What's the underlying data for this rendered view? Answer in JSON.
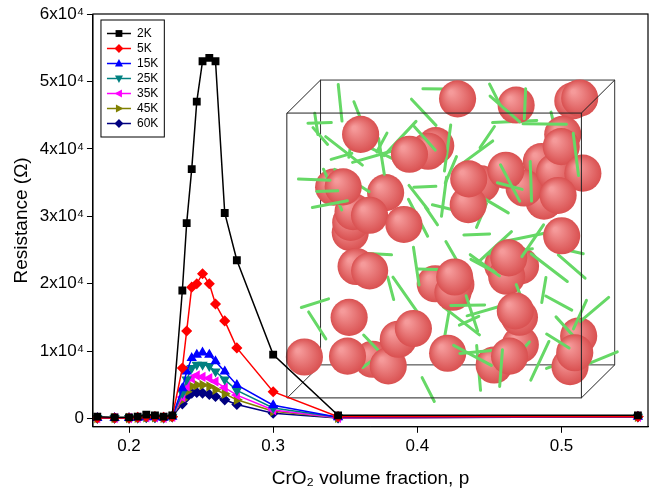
{
  "chart_data": {
    "type": "line",
    "x_label": "CrO₂ volume fraction, p",
    "y_label": "Resistance (Ω)",
    "x": [
      0.178,
      0.19,
      0.2,
      0.206,
      0.212,
      0.218,
      0.224,
      0.23,
      0.237,
      0.24,
      0.2435,
      0.247,
      0.251,
      0.2557,
      0.26,
      0.2664,
      0.2748,
      0.3,
      0.345,
      0.553
    ],
    "xlim": [
      0.175,
      0.56
    ],
    "xticks": [
      0.2,
      0.3,
      0.4,
      0.5
    ],
    "ylim": [
      -1200,
      60000
    ],
    "yticks": [
      {
        "value": 0,
        "label": "0"
      },
      {
        "value": 10000,
        "label": "1x10⁴"
      },
      {
        "value": 20000,
        "label": "2x10⁴"
      },
      {
        "value": 30000,
        "label": "3x10⁴"
      },
      {
        "value": 40000,
        "label": "4x10⁴"
      },
      {
        "value": 50000,
        "label": "5x10⁴"
      },
      {
        "value": 60000,
        "label": "6x10⁴"
      }
    ],
    "grid": false,
    "legend": "top-left",
    "series": [
      {
        "name": "2K",
        "color": "#000000",
        "marker": "square",
        "values": [
          300,
          200,
          200,
          300,
          600,
          500,
          300,
          500,
          19000,
          29000,
          37000,
          47000,
          53000,
          53500,
          53000,
          30500,
          23500,
          9500,
          500,
          500
        ]
      },
      {
        "name": "5K",
        "color": "#ff0000",
        "marker": "diamond",
        "values": [
          100,
          100,
          100,
          200,
          300,
          300,
          200,
          300,
          7500,
          13000,
          19500,
          20000,
          21500,
          20000,
          17000,
          14500,
          10500,
          4000,
          300,
          300
        ]
      },
      {
        "name": "15K",
        "color": "#0000ff",
        "marker": "triangle-up",
        "values": [
          100,
          100,
          100,
          150,
          200,
          200,
          150,
          300,
          4500,
          7000,
          9000,
          9500,
          9800,
          9500,
          8500,
          7000,
          5000,
          2000,
          200,
          300
        ]
      },
      {
        "name": "25K",
        "color": "#008080",
        "marker": "triangle-down",
        "values": [
          100,
          100,
          100,
          150,
          200,
          200,
          150,
          300,
          3800,
          5800,
          7500,
          8000,
          8000,
          7800,
          7000,
          5800,
          4200,
          1600,
          200,
          300
        ]
      },
      {
        "name": "35K",
        "color": "#ff00ff",
        "marker": "triangle-left",
        "values": [
          100,
          100,
          100,
          150,
          200,
          200,
          150,
          300,
          3200,
          4800,
          6000,
          6400,
          6200,
          6000,
          5500,
          4600,
          3500,
          1300,
          150,
          300
        ]
      },
      {
        "name": "45K",
        "color": "#808000",
        "marker": "triangle-right",
        "values": [
          100,
          100,
          100,
          150,
          200,
          200,
          150,
          300,
          2800,
          4000,
          4800,
          5000,
          5000,
          4800,
          4300,
          3700,
          2800,
          1100,
          150,
          300
        ]
      },
      {
        "name": "60K",
        "color": "#000080",
        "marker": "diamond",
        "values": [
          100,
          100,
          100,
          150,
          200,
          200,
          150,
          300,
          2200,
          3200,
          3800,
          3900,
          3800,
          3600,
          3300,
          2800,
          2100,
          800,
          100,
          300
        ]
      }
    ]
  }
}
